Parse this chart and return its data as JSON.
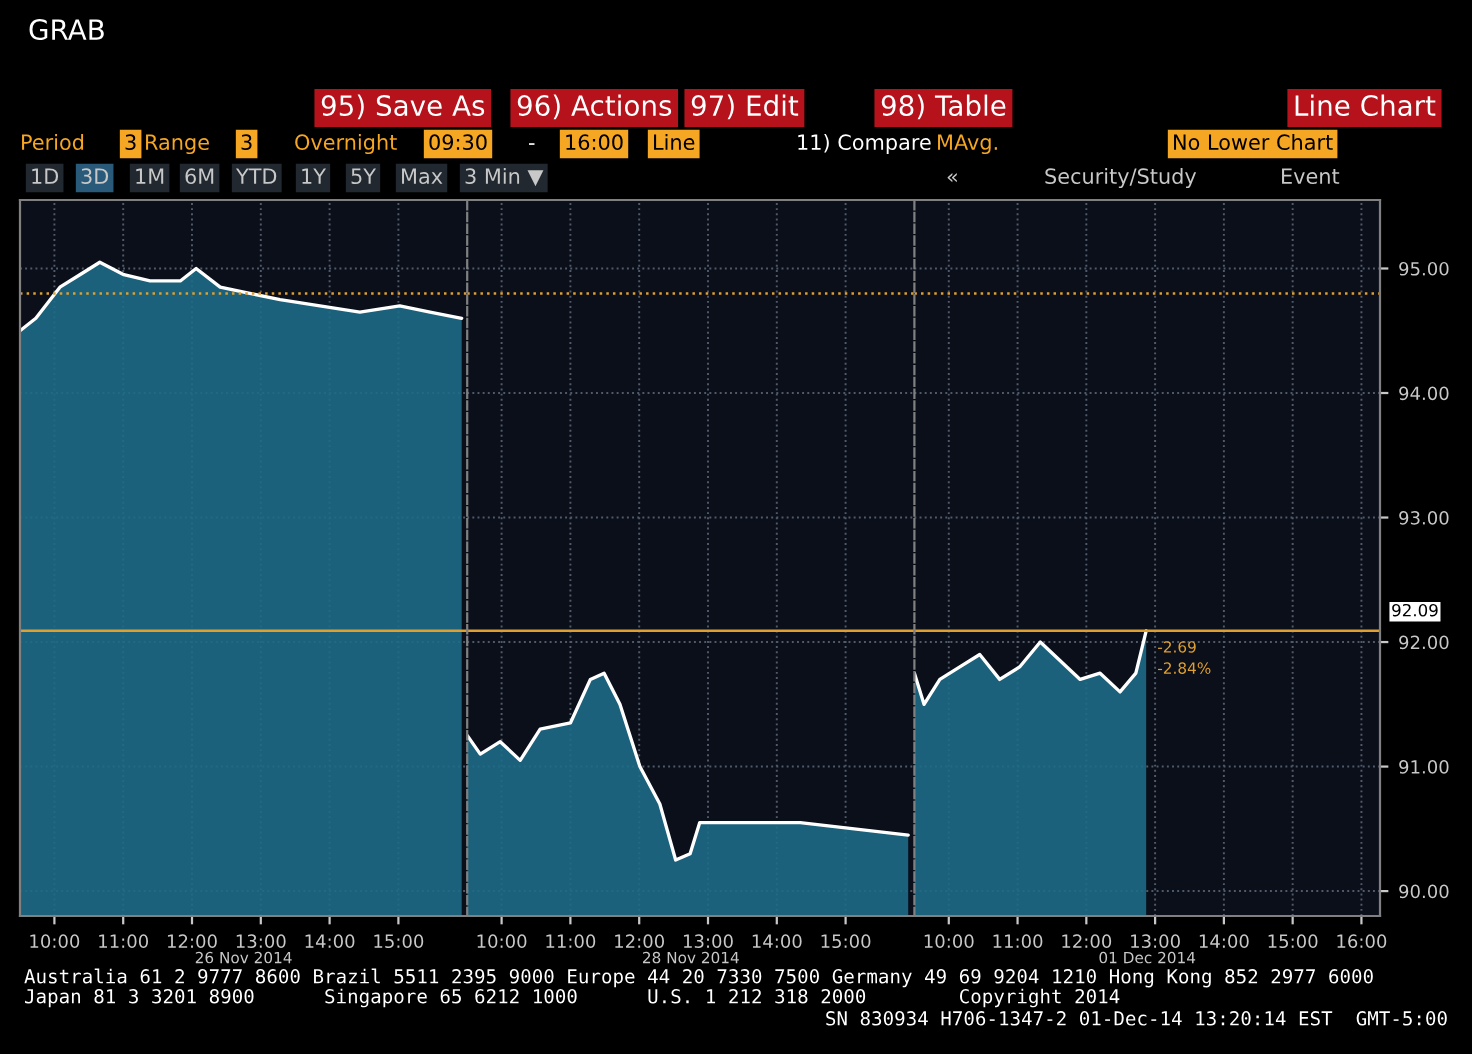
{
  "chart_data": [
    {
      "type": "area",
      "xlabel": "26 Nov 2014",
      "x": [
        9.5,
        9.73,
        10.08,
        10.37,
        10.66,
        11.01,
        11.39,
        11.83,
        12.06,
        12.41,
        12.84,
        13.28,
        13.86,
        14.44,
        15.02,
        15.46,
        15.92
      ],
      "series": [
        {
          "color": "#1d6a86",
          "values": [
            94.5,
            94.6,
            94.85,
            94.95,
            95.05,
            94.95,
            94.9,
            94.9,
            95.0,
            94.85,
            94.8,
            94.75,
            94.7,
            94.65,
            94.7,
            94.65,
            94.6
          ]
        }
      ],
      "xlim": [
        9.5,
        16
      ],
      "ylim": [
        89.8,
        95.55
      ],
      "xticks": [
        {
          "value": 10,
          "label": "10:00"
        },
        {
          "value": 11,
          "label": "11:00"
        },
        {
          "value": 12,
          "label": "12:00"
        },
        {
          "value": 13,
          "label": "13:00"
        },
        {
          "value": 14,
          "label": "14:00"
        },
        {
          "value": 15,
          "label": "15:00"
        }
      ],
      "yticks": [
        90,
        91,
        92,
        93,
        94,
        95
      ],
      "tick_labels": "x",
      "grid": true,
      "marker": "none",
      "line_style": "solid",
      "ref_lines": [
        {
          "axis": "y",
          "value": 94.8,
          "color": "#e0a030",
          "line_style": "dotted"
        },
        {
          "axis": "y",
          "value": 92.09,
          "color": "#e0a030",
          "line_style": "solid"
        }
      ],
      "annotations": [
        "GRAB",
        "95) Save As",
        "96) Actions",
        "97) Edit",
        "98) Table",
        "Line Chart",
        "Period",
        "3",
        "Range",
        "3",
        "Overnight",
        "09:30",
        "-",
        "16:00",
        "Line",
        "11) Compare",
        "MAvg.",
        "No Lower Chart",
        "1D",
        "3D",
        "1M",
        "6M",
        "YTD",
        "1Y",
        "5Y",
        "Max",
        "3 Min ▼",
        "«",
        "Security/Study",
        "Event",
        "Australia 61 2 9777 8600 Brazil 5511 2395 9000 Europe 44 20 7330 7500 Germany 49 69 9204 1210 Hong Kong 852 2977 6000",
        "Japan 81 3 3201 8900      Singapore 65 6212 1000      U.S. 1 212 318 2000        Copyright 2014",
        "SN 830934 H706-1347-2 01-Dec-14 13:20:14 EST  GMT-5:00"
      ]
    },
    {
      "type": "area",
      "xlabel": "28 Nov 2014",
      "x": [
        9.5,
        9.69,
        9.98,
        10.27,
        10.56,
        11.0,
        11.29,
        11.49,
        11.72,
        12.01,
        12.3,
        12.53,
        12.74,
        12.88,
        14.34,
        15.91
      ],
      "series": [
        {
          "color": "#1d6a86",
          "values": [
            91.25,
            91.1,
            91.2,
            91.05,
            91.3,
            91.35,
            91.7,
            91.75,
            91.5,
            91.0,
            90.7,
            90.25,
            90.3,
            90.55,
            90.55,
            90.45
          ]
        }
      ],
      "xlim": [
        9.5,
        16
      ],
      "ylim": [
        89.8,
        95.55
      ],
      "xticks": [
        {
          "value": 10,
          "label": "10:00"
        },
        {
          "value": 11,
          "label": "11:00"
        },
        {
          "value": 12,
          "label": "12:00"
        },
        {
          "value": 13,
          "label": "13:00"
        },
        {
          "value": 14,
          "label": "14:00"
        },
        {
          "value": 15,
          "label": "15:00"
        }
      ],
      "yticks": [
        90,
        91,
        92,
        93,
        94,
        95
      ],
      "tick_labels": "x",
      "grid": true,
      "marker": "none",
      "line_style": "solid",
      "ref_lines": [
        {
          "axis": "y",
          "value": 94.8,
          "color": "#e0a030",
          "line_style": "dotted"
        },
        {
          "axis": "y",
          "value": 92.09,
          "color": "#e0a030",
          "line_style": "solid"
        }
      ]
    },
    {
      "type": "area",
      "xlabel": "01 Dec 2014",
      "x": [
        9.5,
        9.64,
        9.87,
        10.16,
        10.45,
        10.74,
        11.03,
        11.33,
        11.62,
        11.91,
        12.2,
        12.49,
        12.72,
        12.87
      ],
      "series": [
        {
          "color": "#1d6a86",
          "values": [
            91.75,
            91.5,
            91.7,
            91.8,
            91.9,
            91.7,
            91.8,
            92.0,
            91.85,
            91.7,
            91.75,
            91.6,
            91.75,
            92.09
          ]
        }
      ],
      "xlim": [
        9.5,
        16.27
      ],
      "ylim": [
        89.8,
        95.55
      ],
      "xticks": [
        {
          "value": 10,
          "label": "10:00"
        },
        {
          "value": 11,
          "label": "11:00"
        },
        {
          "value": 12,
          "label": "12:00"
        },
        {
          "value": 13,
          "label": "13:00"
        },
        {
          "value": 14,
          "label": "14:00"
        },
        {
          "value": 15,
          "label": "15:00"
        },
        {
          "value": 16,
          "label": "16:00"
        }
      ],
      "yticks": [
        {
          "value": 90,
          "label": "90.00"
        },
        {
          "value": 91,
          "label": "91.00"
        },
        {
          "value": 92,
          "label": "92.00"
        },
        {
          "value": 93,
          "label": "93.00"
        },
        {
          "value": 94,
          "label": "94.00"
        },
        {
          "value": 95,
          "label": "95.00"
        }
      ],
      "grid": true,
      "marker": "none",
      "line_style": "solid",
      "ref_lines": [
        {
          "axis": "y",
          "value": 94.8,
          "color": "#e0a030",
          "line_style": "dotted"
        },
        {
          "axis": "y",
          "value": 92.09,
          "label": "92.09",
          "color": "#e0a030",
          "line_style": "solid"
        }
      ],
      "annotations": [
        {
          "text": "-2.69",
          "x": 12.87,
          "y": 91.95
        },
        {
          "text": "-2.84%",
          "x": 12.87,
          "y": 91.78
        }
      ]
    }
  ]
}
